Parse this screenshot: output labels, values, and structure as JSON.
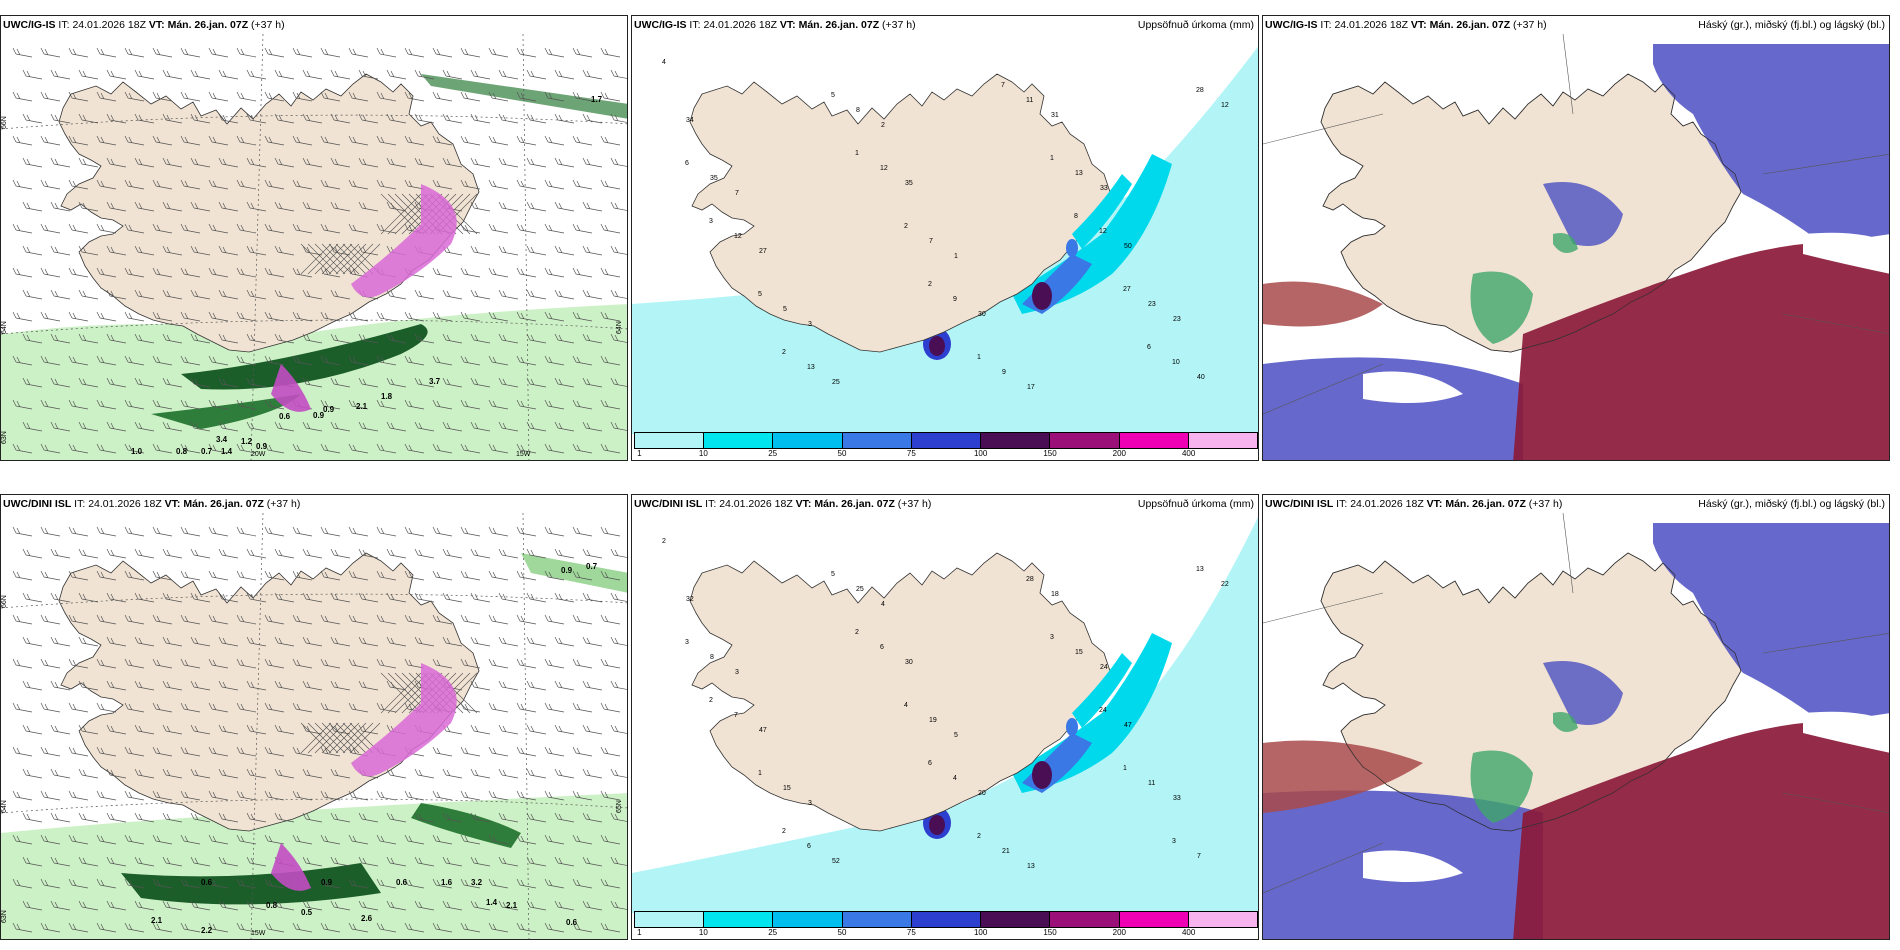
{
  "panels": [
    {
      "id": "p1",
      "model": "UWC/IG-IS",
      "it_label": "IT:",
      "it_value": "24.01.2026 18Z",
      "vt_label": "VT:",
      "vt_value": "Mán. 26.jan. 07Z",
      "lead": "(+37 h)",
      "right_title": ""
    },
    {
      "id": "p2",
      "model": "UWC/IG-IS",
      "it_label": "IT:",
      "it_value": "24.01.2026 18Z",
      "vt_label": "VT:",
      "vt_value": "Mán. 26.jan. 07Z",
      "lead": "(+37 h)",
      "right_title": "Uppsöfnuð úrkoma (mm)"
    },
    {
      "id": "p3",
      "model": "UWC/IG-IS",
      "it_label": "IT:",
      "it_value": "24.01.2026 18Z",
      "vt_label": "VT:",
      "vt_value": "Mán. 26.jan. 07Z",
      "lead": "(+37 h)",
      "right_title": "Háský (gr.), miðský (fj.bl.) og lágský (bl.)"
    },
    {
      "id": "p4",
      "model": "UWC/DINI ISL",
      "it_label": "IT:",
      "it_value": "24.01.2026 18Z",
      "vt_label": "VT:",
      "vt_value": "Mán. 26.jan. 07Z",
      "lead": "(+37 h)",
      "right_title": ""
    },
    {
      "id": "p5",
      "model": "UWC/DINI ISL",
      "it_label": "IT:",
      "it_value": "24.01.2026 18Z",
      "vt_label": "VT:",
      "vt_value": "Mán. 26.jan. 07Z",
      "lead": "(+37 h)",
      "right_title": "Uppsöfnuð úrkoma (mm)"
    },
    {
      "id": "p6",
      "model": "UWC/DINI ISL",
      "it_label": "IT:",
      "it_value": "24.01.2026 18Z",
      "vt_label": "VT:",
      "vt_value": "Mán. 26.jan. 07Z",
      "lead": "(+37 h)",
      "right_title": "Háský (gr.), miðský (fj.bl.) og lágský (bl.)"
    }
  ],
  "colorbar": {
    "ticks": [
      "1",
      "10",
      "25",
      "50",
      "75",
      "100",
      "150",
      "200",
      "400"
    ],
    "colors": [
      "#b3f5f7",
      "#00e5ee",
      "#00bfef",
      "#3a78e6",
      "#2d3fcf",
      "#4a0e55",
      "#9a0f78",
      "#f000b4",
      "#f7b3ee"
    ]
  },
  "grid_labels": {
    "p1": {
      "lat_a": "66N",
      "lat_b": "64N",
      "lat_c": "63N",
      "lon_a": "20W",
      "lon_b": "15W",
      "lat_right": "64N"
    },
    "p4": {
      "lat_a": "66N",
      "lat_b": "64N",
      "lat_c": "63N",
      "lon_a": "15W",
      "lat_right": "65N"
    }
  },
  "precip_labels_top": [
    "4",
    "7",
    "3",
    "2",
    "1",
    "17",
    "33",
    "23",
    "34",
    "27",
    "25",
    "35",
    "30",
    "31",
    "50",
    "40",
    "35",
    "5",
    "8",
    "7",
    "9",
    "13",
    "23",
    "12",
    "12",
    "13",
    "12",
    "9",
    "11",
    "12",
    "10",
    "6",
    "5",
    "5",
    "2",
    "1",
    "1",
    "27",
    "28",
    "3",
    "2",
    "1",
    "2",
    "7",
    "8",
    "6"
  ],
  "precip_labels_bottom": [
    "2",
    "3",
    "3",
    "4",
    "5",
    "13",
    "24",
    "33",
    "32",
    "47",
    "52",
    "30",
    "20",
    "18",
    "47",
    "7",
    "8",
    "15",
    "25",
    "19",
    "21",
    "15",
    "11",
    "22",
    "7",
    "6",
    "6",
    "4",
    "28",
    "24",
    "3",
    "3",
    "1",
    "5",
    "4",
    "2",
    "3",
    "1",
    "13",
    "2",
    "2",
    "2",
    "6"
  ],
  "value_labels_p1": [
    "0.6",
    "0.9",
    "0.9",
    "3.7",
    "2.1",
    "1.8",
    "1.0",
    "0.8",
    "0.7",
    "1.4",
    "1.2",
    "3.4",
    "0.9",
    "1.7"
  ],
  "value_labels_p4": [
    "0.9",
    "0.7",
    "0.6",
    "0.8",
    "0.5",
    "0.9",
    "2.1",
    "2.2",
    "2.6",
    "0.6",
    "1.6",
    "3.2",
    "1.4",
    "2.1",
    "0.6"
  ],
  "colors": {
    "land": "#f1e3d3",
    "sea": "#ffffff",
    "precip_light": "#b3f5f7",
    "cloud_high": "#8b1a3a",
    "cloud_mid": "#4b4fc2",
    "cloud_low": "#3ea66a"
  }
}
